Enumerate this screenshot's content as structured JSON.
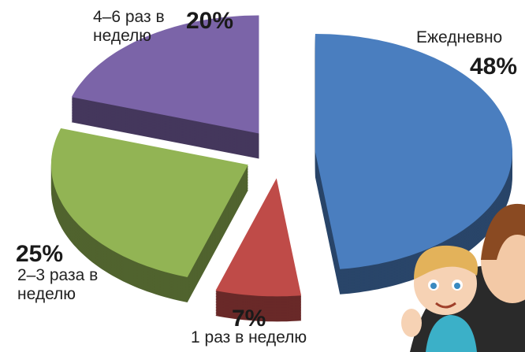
{
  "chart_data": {
    "type": "pie",
    "categories": [
      "Ежедневно",
      "1 раз в неделю",
      "2–3 раза в неделю",
      "4–6 раз в неделю"
    ],
    "values": [
      48,
      7,
      25,
      20
    ],
    "value_labels": [
      "48%",
      "7%",
      "25%",
      "20%"
    ],
    "colors": [
      "#4a7ebf",
      "#bf4b48",
      "#92b454",
      "#7b64a8"
    ]
  }
}
